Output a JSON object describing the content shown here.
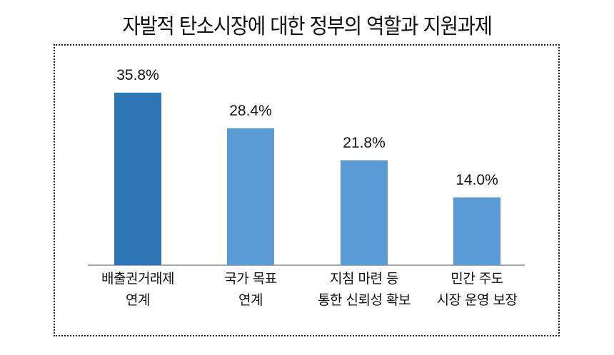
{
  "chart_data": {
    "type": "bar",
    "title": "자발적 탄소시장에 대한 정부의 역할과 지원과제",
    "categories": [
      "배출권거래제 연계",
      "국가 목표 연계",
      "지침 마련 등 통한 신뢰성 확보",
      "민간 주도 시장 운영 보장"
    ],
    "category_lines": [
      [
        "배출권거래제",
        "연계"
      ],
      [
        "국가 목표",
        "연계"
      ],
      [
        "지침 마련 등",
        "통한 신뢰성 확보"
      ],
      [
        "민간 주도",
        "시장 운영 보장"
      ]
    ],
    "values": [
      35.8,
      28.4,
      21.8,
      14.0
    ],
    "value_labels": [
      "35.8%",
      "28.4%",
      "21.8%",
      "14.0%"
    ],
    "unit": "%",
    "xlabel": "",
    "ylabel": "",
    "ylim": [
      0,
      40
    ],
    "grid": false,
    "legend": null,
    "colors": [
      "#2e75b6",
      "#5b9bd5",
      "#5b9bd5",
      "#5b9bd5"
    ]
  }
}
